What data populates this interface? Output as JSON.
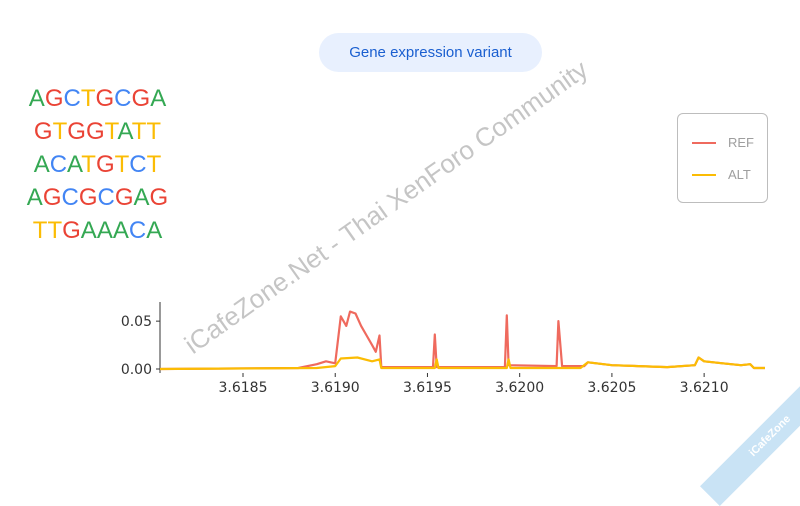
{
  "header": {
    "title_pill": "Gene expression variant"
  },
  "dna_sequences": [
    "AGCTGCGA",
    "GTGGTATT",
    "ACATGTCT",
    "AGCGCGAG",
    "TTGAAACA"
  ],
  "base_colors": {
    "A": "#34a853",
    "G": "#ea4335",
    "C": "#4285f4",
    "T": "#fbbc04"
  },
  "watermark": "iCafeZone.Net - Thai XenForo Community",
  "corner_badge": "iCafeZone",
  "chart_data": {
    "type": "line",
    "title": "",
    "xlabel": "",
    "ylabel": "",
    "xlim": [
      3.61805,
      3.62133
    ],
    "ylim": [
      0,
      0.07
    ],
    "x_ticks": [
      "3.6185",
      "3.6190",
      "3.6195",
      "3.6200",
      "3.6205",
      "3.6210"
    ],
    "y_ticks": [
      "0.00",
      "0.05"
    ],
    "grid": false,
    "legend_position": "right",
    "series": [
      {
        "name": "REF",
        "color": "#ef6a5e",
        "points": [
          [
            3.61805,
            0
          ],
          [
            3.6188,
            0.001
          ],
          [
            3.6189,
            0.005
          ],
          [
            3.61895,
            0.008
          ],
          [
            3.619,
            0.006
          ],
          [
            3.61903,
            0.055
          ],
          [
            3.61906,
            0.045
          ],
          [
            3.61908,
            0.06
          ],
          [
            3.61911,
            0.058
          ],
          [
            3.61914,
            0.045
          ],
          [
            3.61917,
            0.035
          ],
          [
            3.6192,
            0.025
          ],
          [
            3.61922,
            0.018
          ],
          [
            3.61924,
            0.035
          ],
          [
            3.61925,
            0.002
          ],
          [
            3.61953,
            0.002
          ],
          [
            3.61954,
            0.036
          ],
          [
            3.61955,
            0.002
          ],
          [
            3.61992,
            0.002
          ],
          [
            3.61993,
            0.056
          ],
          [
            3.61994,
            0.004
          ],
          [
            3.6202,
            0.003
          ],
          [
            3.62021,
            0.05
          ],
          [
            3.62023,
            0.003
          ],
          [
            3.62035,
            0.003
          ],
          [
            3.62037,
            0.007
          ],
          [
            3.6205,
            0.004
          ],
          [
            3.6208,
            0.002
          ],
          [
            3.62095,
            0.004
          ],
          [
            3.62097,
            0.012
          ],
          [
            3.621,
            0.008
          ],
          [
            3.6211,
            0.006
          ],
          [
            3.6212,
            0.004
          ],
          [
            3.62125,
            0.005
          ],
          [
            3.62127,
            0.001
          ],
          [
            3.62133,
            0.001
          ]
        ]
      },
      {
        "name": "ALT",
        "color": "#fbbc04",
        "points": [
          [
            3.61805,
            0
          ],
          [
            3.6189,
            0.001
          ],
          [
            3.619,
            0.003
          ],
          [
            3.61903,
            0.011
          ],
          [
            3.61912,
            0.012
          ],
          [
            3.6192,
            0.008
          ],
          [
            3.61924,
            0.01
          ],
          [
            3.61925,
            0.001
          ],
          [
            3.61954,
            0.001
          ],
          [
            3.61955,
            0.01
          ],
          [
            3.61956,
            0.001
          ],
          [
            3.61993,
            0.001
          ],
          [
            3.61994,
            0.01
          ],
          [
            3.61995,
            0.001
          ],
          [
            3.62033,
            0.001
          ],
          [
            3.62037,
            0.007
          ],
          [
            3.6205,
            0.004
          ],
          [
            3.6208,
            0.002
          ],
          [
            3.62095,
            0.004
          ],
          [
            3.62097,
            0.012
          ],
          [
            3.621,
            0.008
          ],
          [
            3.6211,
            0.006
          ],
          [
            3.6212,
            0.004
          ],
          [
            3.62125,
            0.005
          ],
          [
            3.62127,
            0.001
          ],
          [
            3.62133,
            0.001
          ]
        ]
      }
    ]
  }
}
